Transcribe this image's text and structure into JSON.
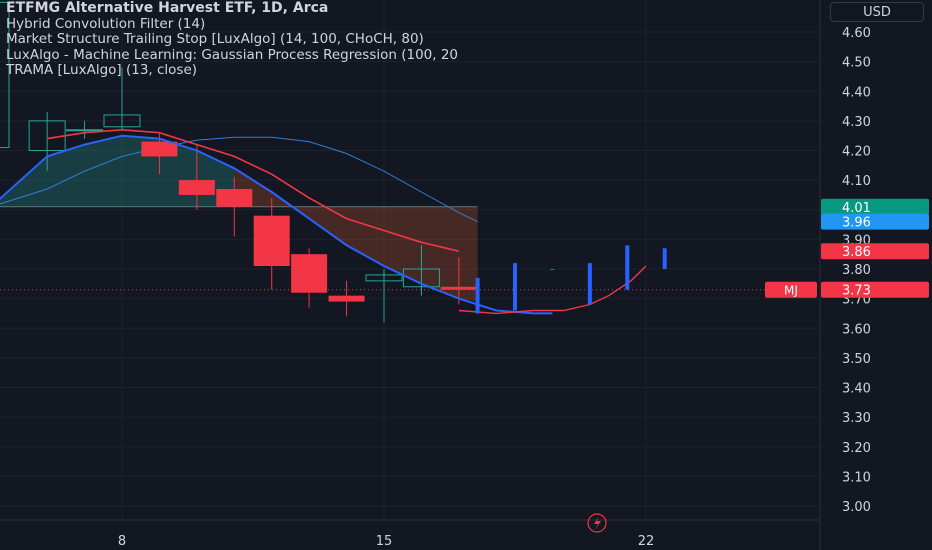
{
  "header": {
    "title": "ETFMG Alternative Harvest ETF, 1D, Arca",
    "indicators": [
      "Hybrid Convolution Filter (14)",
      "Market Structure Trailing Stop [LuxAlgo] (14, 100, CHoCH, 80)",
      "LuxAlgo - Machine Learning: Gaussian Process Regression (100, 20",
      "TRAMA [LuxAlgo] (13, close)"
    ],
    "currency": "USD"
  },
  "markers": {
    "mj_label": "MJ"
  },
  "colors": {
    "bg": "#131722",
    "grid": "#1e222d",
    "up": "#26a69a",
    "down": "#f23645",
    "blue": "#2962ff",
    "lightblue": "#2f7fd4",
    "red": "#f23645",
    "tag_green": "#089981",
    "tag_blue": "#2196f3",
    "tag_red": "#f23645"
  },
  "chart_data": {
    "type": "candlestick",
    "y_ticks": [
      "4.60",
      "4.50",
      "4.40",
      "4.30",
      "4.20",
      "4.10",
      "4.00",
      "3.90",
      "3.80",
      "3.70",
      "3.60",
      "3.50",
      "3.40",
      "3.30",
      "3.20",
      "3.10",
      "3.00"
    ],
    "ylim": [
      2.96,
      4.69
    ],
    "x_ticks": [
      {
        "label": "8",
        "x": 8
      },
      {
        "label": "15",
        "x": 15
      },
      {
        "label": "22",
        "x": 22
      }
    ],
    "xlim": [
      4.5,
      30
    ],
    "candles": [
      {
        "x": 4.5,
        "open": 4.21,
        "high": 4.7,
        "low": 4.14,
        "close": 4.7
      },
      {
        "x": 6,
        "open": 4.2,
        "high": 4.33,
        "low": 4.13,
        "close": 4.3
      },
      {
        "x": 7,
        "open": 4.27,
        "high": 4.3,
        "low": 4.24,
        "close": 4.27
      },
      {
        "x": 8,
        "open": 4.28,
        "high": 4.48,
        "low": 4.27,
        "close": 4.32
      },
      {
        "x": 9,
        "open": 4.23,
        "high": 4.26,
        "low": 4.12,
        "close": 4.18
      },
      {
        "x": 10,
        "open": 4.1,
        "high": 4.22,
        "low": 4.0,
        "close": 4.05
      },
      {
        "x": 11,
        "open": 4.07,
        "high": 4.11,
        "low": 3.91,
        "close": 4.01
      },
      {
        "x": 12,
        "open": 3.98,
        "high": 4.04,
        "low": 3.73,
        "close": 3.81
      },
      {
        "x": 13,
        "open": 3.85,
        "high": 3.87,
        "low": 3.67,
        "close": 3.72
      },
      {
        "x": 14,
        "open": 3.71,
        "high": 3.76,
        "low": 3.64,
        "close": 3.69
      },
      {
        "x": 15,
        "open": 3.76,
        "high": 3.8,
        "low": 3.62,
        "close": 3.78
      },
      {
        "x": 16,
        "open": 3.74,
        "high": 3.88,
        "low": 3.71,
        "close": 3.8
      },
      {
        "x": 17,
        "open": 3.74,
        "high": 3.84,
        "low": 3.68,
        "close": 3.73
      }
    ],
    "blue_bars": [
      {
        "x": 17.5,
        "low": 3.65,
        "high": 3.77
      },
      {
        "x": 18.5,
        "low": 3.66,
        "high": 3.82
      },
      {
        "x": 19.5,
        "low": 3.8,
        "high": 3.8
      },
      {
        "x": 20.5,
        "low": 3.68,
        "high": 3.82
      },
      {
        "x": 21.5,
        "low": 3.73,
        "high": 3.88
      },
      {
        "x": 22.5,
        "low": 3.8,
        "high": 3.87
      }
    ],
    "hybrid_filter": [
      [
        4.5,
        4.01
      ],
      [
        6,
        4.18
      ],
      [
        7,
        4.22
      ],
      [
        8,
        4.25
      ],
      [
        9,
        4.24
      ],
      [
        10,
        4.2
      ],
      [
        11,
        4.14
      ],
      [
        12,
        4.06
      ],
      [
        13,
        3.97
      ],
      [
        14,
        3.88
      ],
      [
        15,
        3.81
      ],
      [
        16,
        3.75
      ],
      [
        17,
        3.7
      ],
      [
        18,
        3.66
      ],
      [
        19,
        3.65
      ],
      [
        19.5,
        3.65
      ]
    ],
    "gpr": [
      [
        4.5,
        4.01
      ],
      [
        6,
        4.07
      ],
      [
        7,
        4.13
      ],
      [
        8,
        4.18
      ],
      [
        9,
        4.21
      ],
      [
        10,
        4.235
      ],
      [
        11,
        4.245
      ],
      [
        12,
        4.245
      ],
      [
        13,
        4.23
      ],
      [
        14,
        4.19
      ],
      [
        15,
        4.13
      ],
      [
        16,
        4.06
      ],
      [
        17,
        3.99
      ],
      [
        17.5,
        3.96
      ]
    ],
    "trama": [
      [
        6,
        4.24
      ],
      [
        7,
        4.26
      ],
      [
        8,
        4.27
      ],
      [
        9,
        4.26
      ],
      [
        10,
        4.22
      ],
      [
        11,
        4.18
      ],
      [
        12,
        4.12
      ],
      [
        13,
        4.04
      ],
      [
        14,
        3.97
      ],
      [
        15,
        3.93
      ],
      [
        16,
        3.89
      ],
      [
        17,
        3.86
      ]
    ],
    "trailing_stop": [
      [
        17,
        3.66
      ],
      [
        18,
        3.65
      ],
      [
        19,
        3.66
      ],
      [
        19.8,
        3.66
      ],
      [
        20.5,
        3.68
      ],
      [
        21,
        3.71
      ],
      [
        21.6,
        3.76
      ],
      [
        22,
        3.81
      ]
    ],
    "fill_top": 4.01,
    "price_tags": [
      {
        "label": "4.01",
        "value": 4.01,
        "color": "#089981"
      },
      {
        "label": "3.96",
        "value": 3.96,
        "color": "#2196f3"
      },
      {
        "label": "3.86",
        "value": 3.86,
        "color": "#f23645"
      },
      {
        "label": "3.73",
        "value": 3.73,
        "color": "#f23645"
      }
    ],
    "last_price": 3.73
  }
}
